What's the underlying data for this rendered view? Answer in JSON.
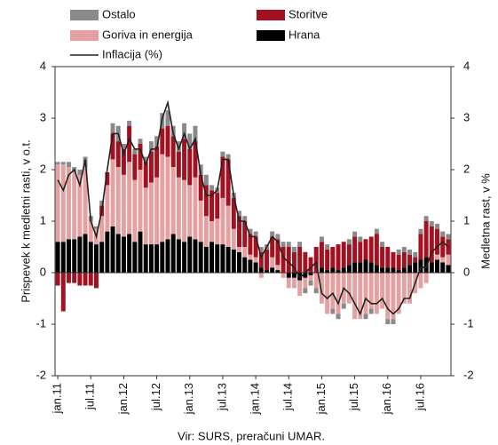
{
  "chart_data": {
    "type": "bar",
    "stacked": true,
    "ylabel": "Prispevek k medletni rasti, v o.t.",
    "y2label": "Medletna rast, v %",
    "source": "Vir: SURS, preračuni UMAR.",
    "categories": [
      "jan.11",
      null,
      null,
      null,
      null,
      null,
      "jul.11",
      null,
      null,
      null,
      null,
      null,
      "jan.12",
      null,
      null,
      null,
      null,
      null,
      "jul.12",
      null,
      null,
      null,
      null,
      null,
      "jan.13",
      null,
      null,
      null,
      null,
      null,
      "jul.13",
      null,
      null,
      null,
      null,
      null,
      "jan.14",
      null,
      null,
      null,
      null,
      null,
      "jul.14",
      null,
      null,
      null,
      null,
      null,
      "jan.15",
      null,
      null,
      null,
      null,
      null,
      "jul.15",
      null,
      null,
      null,
      null,
      null,
      "jan.16",
      null,
      null,
      null,
      null,
      null,
      "jul.16",
      null,
      null,
      null,
      null,
      null
    ],
    "ylim": [
      -2,
      4
    ],
    "yticks": [
      -2,
      -1,
      0,
      1,
      2,
      3,
      4
    ],
    "y2lim": [
      -2,
      4
    ],
    "y2ticks": [
      -2,
      -1,
      0,
      1,
      2,
      3,
      4
    ],
    "series": [
      {
        "name": "Hrana",
        "color": "#000000",
        "values": [
          0.6,
          0.6,
          0.65,
          0.65,
          0.7,
          0.75,
          0.6,
          0.55,
          0.6,
          0.8,
          0.9,
          0.75,
          0.7,
          0.75,
          0.6,
          0.8,
          0.55,
          0.55,
          0.55,
          0.6,
          0.65,
          0.75,
          0.65,
          0.6,
          0.7,
          0.65,
          0.6,
          0.5,
          0.6,
          0.55,
          0.55,
          0.5,
          0.45,
          0.4,
          0.3,
          0.25,
          0.2,
          0.1,
          0.05,
          0.1,
          0.05,
          0.0,
          -0.1,
          -0.1,
          -0.15,
          -0.1,
          -0.05,
          0.0,
          0.1,
          0.05,
          0.1,
          0.05,
          0.1,
          0.15,
          0.2,
          0.2,
          0.25,
          0.2,
          0.15,
          0.1,
          0.1,
          0.1,
          0.05,
          0.1,
          0.15,
          0.2,
          0.25,
          0.3,
          0.2,
          0.25,
          0.2,
          0.15
        ]
      },
      {
        "name": "Goriva in energija",
        "color": "#e5a1a1",
        "values": [
          1.5,
          1.5,
          1.4,
          1.3,
          1.2,
          1.3,
          0.4,
          0.3,
          0.5,
          0.9,
          1.3,
          1.3,
          1.2,
          1.4,
          1.2,
          1.2,
          1.1,
          1.2,
          1.3,
          1.7,
          1.6,
          1.3,
          1.2,
          1.2,
          1.0,
          1.2,
          0.8,
          0.6,
          0.4,
          0.5,
          0.9,
          0.8,
          0.4,
          0.1,
          0.2,
          0.1,
          0.1,
          -0.1,
          0.0,
          0.2,
          0.1,
          -0.1,
          -0.2,
          -0.2,
          -0.3,
          -0.2,
          -0.1,
          -0.3,
          -0.6,
          -0.8,
          -0.7,
          -0.8,
          -0.6,
          -0.6,
          -0.9,
          -0.9,
          -0.8,
          -0.7,
          -0.8,
          -0.7,
          -0.9,
          -0.9,
          -0.8,
          -0.6,
          -0.6,
          -0.4,
          -0.3,
          -0.2,
          0.0,
          0.1,
          0.1,
          0.2
        ]
      },
      {
        "name": "Storitve",
        "color": "#a3101f",
        "values": [
          -0.25,
          -0.75,
          -0.2,
          -0.2,
          -0.25,
          -0.25,
          -0.25,
          -0.3,
          0.2,
          0.25,
          0.5,
          0.5,
          0.5,
          0.7,
          0.5,
          0.5,
          0.5,
          0.6,
          0.6,
          0.5,
          0.6,
          0.6,
          0.5,
          0.8,
          0.7,
          0.7,
          0.5,
          0.6,
          0.6,
          0.5,
          0.8,
          0.9,
          0.6,
          0.6,
          0.5,
          0.4,
          0.4,
          0.3,
          0.4,
          0.4,
          0.5,
          0.5,
          0.5,
          0.4,
          0.5,
          0.4,
          0.3,
          0.5,
          0.5,
          0.4,
          0.4,
          0.5,
          0.5,
          0.4,
          0.5,
          0.4,
          0.4,
          0.5,
          0.6,
          0.4,
          0.4,
          0.3,
          0.3,
          0.3,
          0.2,
          0.1,
          0.5,
          0.7,
          0.7,
          0.5,
          0.4,
          0.3
        ]
      },
      {
        "name": "Ostalo",
        "color": "#8a8a8a",
        "values": [
          0.05,
          0.05,
          0.1,
          0.1,
          0.1,
          0.2,
          0.1,
          0.05,
          0.1,
          0.0,
          0.2,
          0.3,
          0.1,
          0.1,
          0.1,
          0.1,
          0.1,
          0.2,
          0.2,
          0.3,
          0.3,
          0.2,
          0.2,
          0.3,
          0.3,
          0.3,
          0.2,
          0.2,
          0.1,
          0.1,
          0.1,
          0.1,
          0.1,
          0.1,
          0.1,
          0.1,
          0.1,
          0.1,
          0.1,
          0.1,
          0.1,
          0.1,
          0.1,
          0.1,
          0.1,
          -0.1,
          -0.1,
          -0.1,
          0.1,
          0.1,
          -0.1,
          -0.1,
          -0.1,
          0.1,
          0.1,
          0.1,
          -0.1,
          -0.1,
          0.1,
          0.1,
          -0.1,
          -0.1,
          0.1,
          0.1,
          0.1,
          0.1,
          0.1,
          0.1,
          0.1,
          0.1,
          0.1,
          0.1
        ]
      },
      {
        "name": "Inflacija (%)",
        "type": "line",
        "axis": "y2",
        "color": "#222222",
        "values": [
          1.8,
          1.6,
          1.9,
          2.0,
          1.7,
          2.2,
          1.0,
          0.7,
          1.2,
          2.0,
          2.7,
          2.7,
          2.3,
          2.6,
          2.4,
          2.4,
          2.1,
          2.4,
          2.4,
          3.0,
          3.3,
          2.7,
          2.4,
          2.7,
          2.4,
          2.6,
          1.9,
          1.5,
          1.5,
          1.6,
          2.2,
          2.2,
          1.5,
          1.0,
          1.0,
          0.7,
          0.7,
          0.3,
          0.5,
          0.7,
          0.6,
          0.3,
          0.2,
          0.1,
          -0.1,
          0.0,
          0.1,
          0.2,
          -0.4,
          -0.5,
          -0.4,
          -0.6,
          -0.3,
          -0.4,
          -0.6,
          -0.8,
          -0.5,
          -0.6,
          -0.6,
          -0.5,
          -0.7,
          -0.8,
          -0.7,
          -0.5,
          -0.5,
          -0.2,
          0.1,
          0.1,
          0.4,
          0.5,
          0.6,
          0.5
        ]
      }
    ]
  }
}
